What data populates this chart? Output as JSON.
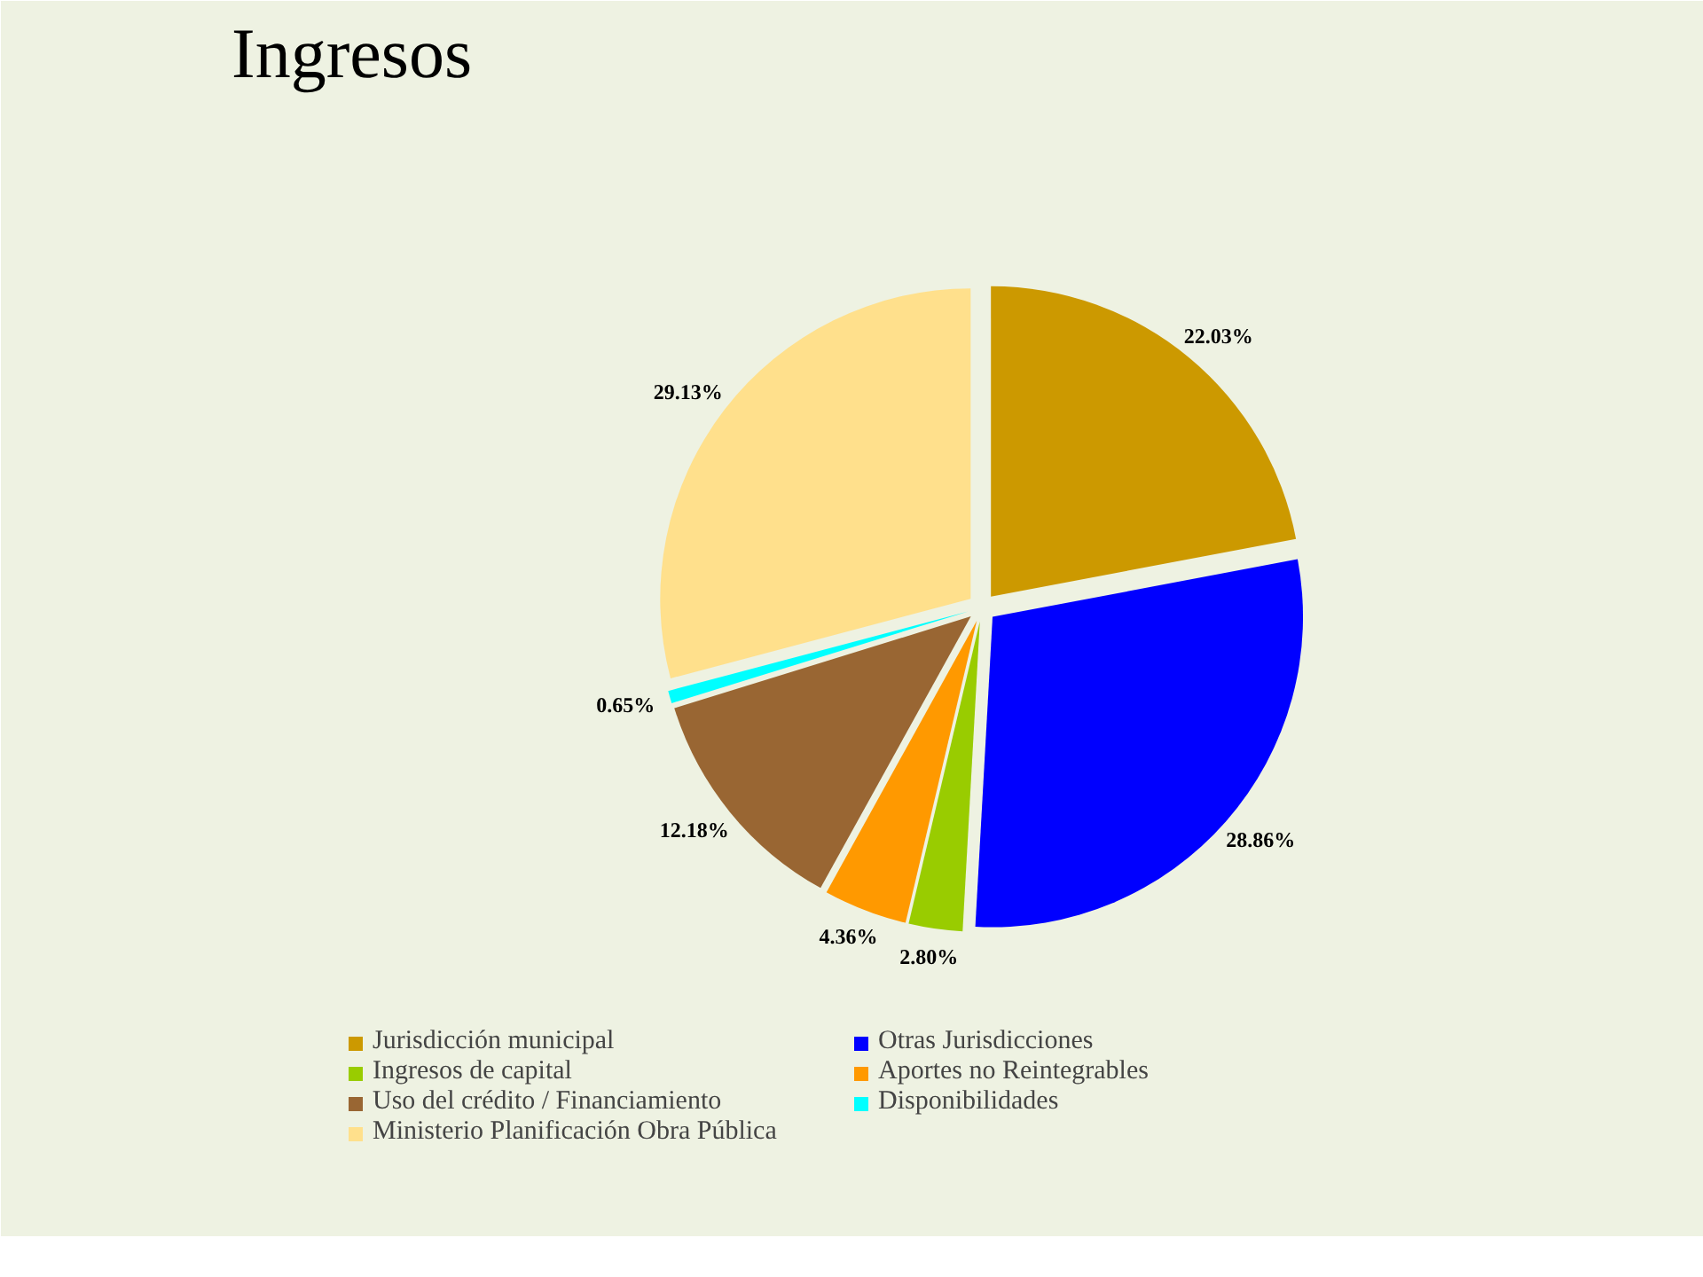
{
  "chart_data": {
    "type": "pie",
    "title": "Ingresos",
    "categories": [
      "Jurisdicción municipal",
      "Otras Jurisdicciones",
      "Ingresos de capital",
      "Aportes no Reintegrables",
      "Uso del crédito / Financiamiento",
      "Disponibilidades",
      "Ministerio Planificación Obra Pública"
    ],
    "values": [
      22.03,
      28.86,
      2.8,
      4.36,
      12.18,
      0.65,
      29.13
    ],
    "colors": [
      "#cc9900",
      "#0000ff",
      "#99cc00",
      "#ff9900",
      "#996633",
      "#00ffff",
      "#ffe08c"
    ],
    "value_labels": [
      "22.03%",
      "28.86%",
      "2.80%",
      "4.36%",
      "12.18%",
      "0.65%",
      "29.13%"
    ],
    "legend": "bottom"
  }
}
